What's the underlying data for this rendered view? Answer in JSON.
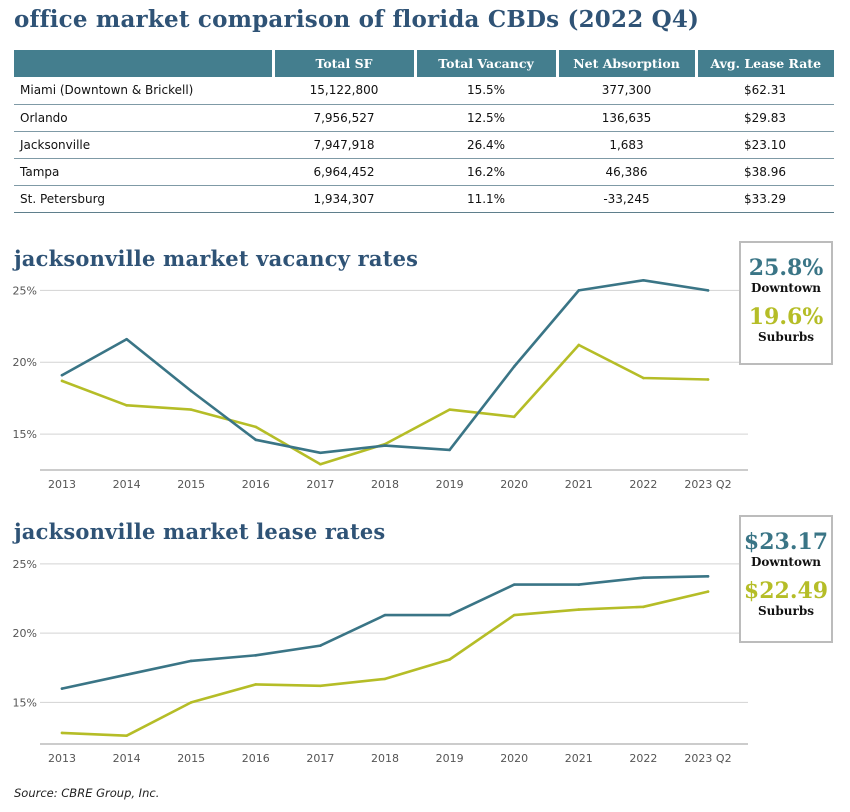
{
  "table_title": "office market comparison of florida CBDs (2022 Q4)",
  "table": {
    "headers": [
      "",
      "Total SF",
      "Total Vacancy",
      "Net Absorption",
      "Avg. Lease Rate"
    ],
    "rows": [
      [
        "Miami (Downtown & Brickell)",
        "15,122,800",
        "15.5%",
        "377,300",
        "$62.31"
      ],
      [
        "Orlando",
        "7,956,527",
        "12.5%",
        "136,635",
        "$29.83"
      ],
      [
        "Jacksonville",
        "7,947,918",
        "26.4%",
        "1,683",
        "$23.10"
      ],
      [
        "Tampa",
        "6,964,452",
        "16.2%",
        "46,386",
        "$38.96"
      ],
      [
        "St. Petersburg",
        "1,934,307",
        "11.1%",
        "-33,245",
        "$33.29"
      ]
    ]
  },
  "vacancy_title": "jacksonville market vacancy rates",
  "lease_title": "jacksonville market lease rates",
  "vacancy_callout": {
    "downtown_value": "25.8%",
    "downtown_label": "Downtown",
    "suburbs_value": "19.6%",
    "suburbs_label": "Suburbs"
  },
  "lease_callout": {
    "downtown_value": "$23.17",
    "downtown_label": "Downtown",
    "suburbs_value": "$22.49",
    "suburbs_label": "Suburbs"
  },
  "source": "Source: CBRE Group, Inc.",
  "colors": {
    "downtown": "#3a7586",
    "suburbs": "#b5bd27",
    "grid": "#d3d3d3",
    "axis_text": "#555555"
  },
  "chart_data": [
    {
      "type": "line",
      "categories": [
        "2013",
        "2014",
        "2015",
        "2016",
        "2017",
        "2018",
        "2019",
        "2020",
        "2021",
        "2022",
        "2023 Q2"
      ],
      "yticks": [
        "15%",
        "20%",
        "25%"
      ],
      "ytick_values": [
        15,
        20,
        25
      ],
      "ylim": [
        12.5,
        26
      ],
      "grid": "horizontal",
      "series": [
        {
          "key": "downtown",
          "values": [
            19.1,
            21.6,
            18.0,
            14.6,
            13.7,
            14.2,
            13.9,
            19.7,
            25.0,
            25.7,
            25.0
          ]
        },
        {
          "key": "suburbs",
          "values": [
            18.7,
            17.0,
            16.7,
            15.5,
            12.9,
            14.3,
            16.7,
            16.2,
            21.2,
            18.9,
            18.8
          ]
        }
      ]
    },
    {
      "type": "line",
      "categories": [
        "2013",
        "2014",
        "2015",
        "2016",
        "2017",
        "2018",
        "2019",
        "2020",
        "2021",
        "2022",
        "2023 Q2"
      ],
      "yticks": [
        "15%",
        "20%",
        "25%"
      ],
      "ytick_values": [
        15,
        20,
        25
      ],
      "ylim": [
        12.0,
        26
      ],
      "grid": "horizontal",
      "series": [
        {
          "key": "downtown",
          "values": [
            16.0,
            17.0,
            18.0,
            18.4,
            19.1,
            21.3,
            21.3,
            23.5,
            23.5,
            24.0,
            24.1
          ]
        },
        {
          "key": "suburbs",
          "values": [
            12.8,
            12.6,
            15.0,
            16.3,
            16.2,
            16.7,
            18.1,
            21.3,
            21.7,
            21.9,
            23.0
          ]
        }
      ]
    }
  ]
}
